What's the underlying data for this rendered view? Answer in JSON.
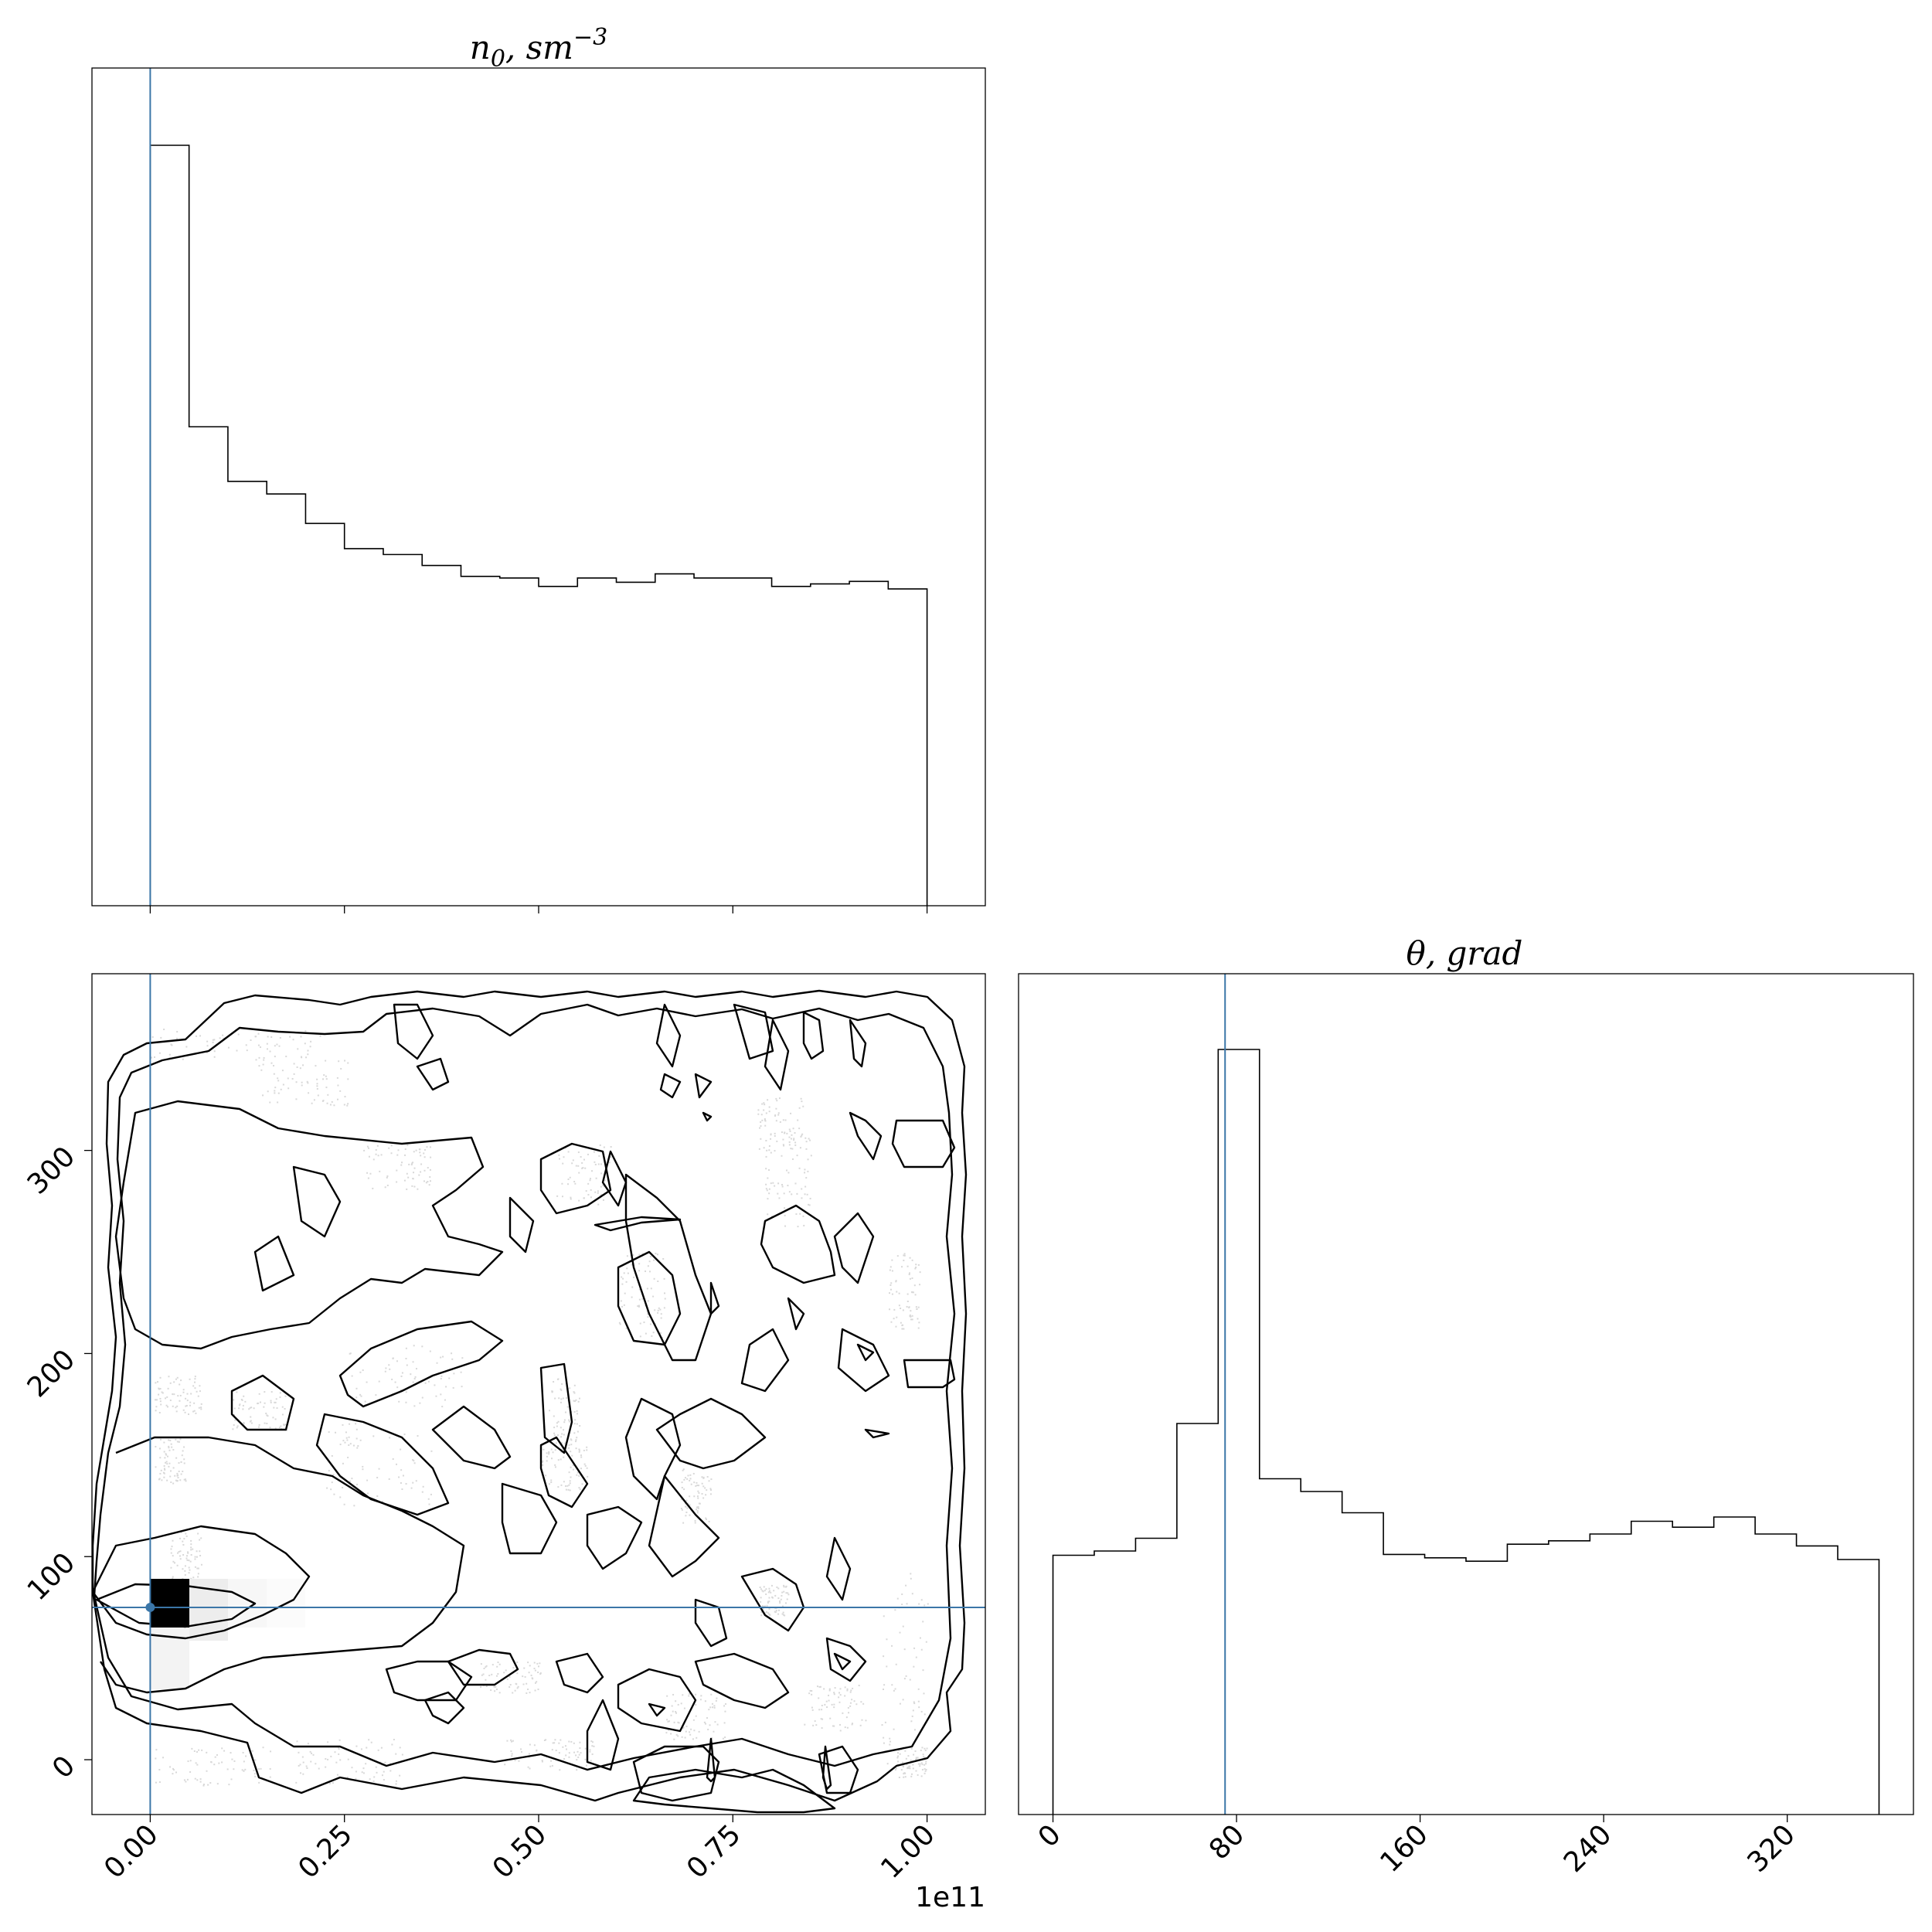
{
  "chart_data": [
    {
      "type": "histogram",
      "panel": "n0-marginal",
      "title": "n_0, sm^{-3}",
      "title_parts": {
        "base": "n",
        "sub": "0",
        "rest": ", sm",
        "sup": "−3"
      },
      "x_range": [
        -7500000000.0,
        107500000000.0
      ],
      "bin_edges": [
        0.0,
        5000000000.0,
        10000000000.0,
        15000000000.0,
        20000000000.0,
        25000000000.0,
        30000000000.0,
        35000000000.0,
        40000000000.0,
        45000000000.0,
        50000000000.0,
        55000000000.0,
        60000000000.0,
        65000000000.0,
        70000000000.0,
        75000000000.0,
        80000000000.0,
        85000000000.0,
        90000000000.0,
        95000000000.0,
        100000000000.0
      ],
      "counts": [
        0.905,
        0.57,
        0.505,
        0.49,
        0.455,
        0.425,
        0.418,
        0.405,
        0.392,
        0.39,
        0.38,
        0.39,
        0.385,
        0.395,
        0.39,
        0.39,
        0.38,
        0.383,
        0.386,
        0.377
      ],
      "truth_value": 0.0,
      "y_axis": "hidden"
    },
    {
      "type": "histogram",
      "panel": "theta-marginal",
      "title": "θ, grad",
      "x_range": [
        -15,
        375
      ],
      "x_ticks": [
        "0",
        "80",
        "160",
        "240",
        "320"
      ],
      "x_tick_values": [
        0,
        80,
        160,
        240,
        320
      ],
      "bin_edges": [
        0,
        18,
        36,
        54,
        72,
        90,
        108,
        126,
        144,
        162,
        180,
        198,
        216,
        234,
        252,
        270,
        288,
        306,
        324,
        342,
        360
      ],
      "counts": [
        0.305,
        0.31,
        0.325,
        0.46,
        0.9,
        0.395,
        0.38,
        0.355,
        0.306,
        0.302,
        0.298,
        0.318,
        0.322,
        0.33,
        0.345,
        0.338,
        0.35,
        0.33,
        0.316,
        0.3
      ],
      "truth_value": 75,
      "y_axis": "hidden"
    },
    {
      "type": "contour",
      "panel": "n0-theta-joint",
      "x_range": [
        -7500000000.0,
        107500000000.0
      ],
      "y_range": [
        -27,
        387
      ],
      "x_ticks": [
        "0.00",
        "0.25",
        "0.50",
        "0.75",
        "1.00"
      ],
      "x_tick_values": [
        0.0,
        25000000000.0,
        50000000000.0,
        75000000000.0,
        100000000000.0
      ],
      "x_offset_text": "1e11",
      "y_ticks": [
        "0",
        "100",
        "200",
        "300"
      ],
      "y_tick_values": [
        0,
        100,
        200,
        300
      ],
      "truth_point": [
        0.0,
        75
      ],
      "density_peak": {
        "x": [
          0.0,
          5000000000.0
        ],
        "y": [
          77,
          90
        ]
      }
    }
  ]
}
